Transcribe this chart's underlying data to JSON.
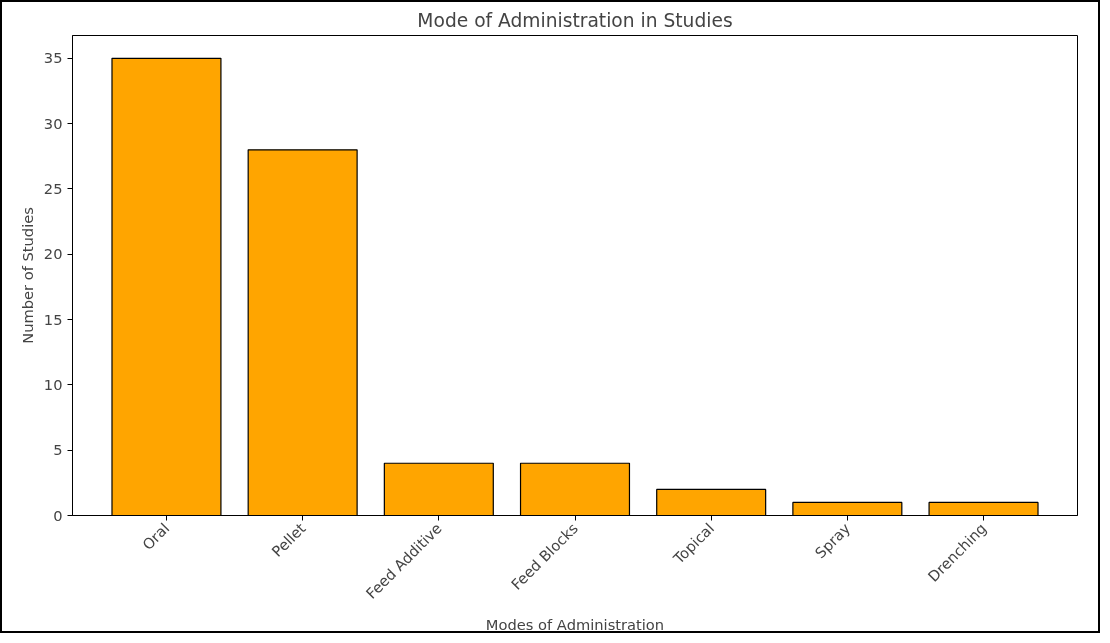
{
  "chart_data": {
    "type": "bar",
    "title": "Mode of Administration in Studies",
    "xlabel": "Modes of Administration",
    "ylabel": "Number of Studies",
    "categories": [
      "Oral",
      "Pellet",
      "Feed Additive",
      "Feed Blocks",
      "Topical",
      "Spray",
      "Drenching"
    ],
    "values": [
      35,
      28,
      4,
      4,
      2,
      1,
      1
    ],
    "color": "#ffa500",
    "ylim": [
      0,
      36.75
    ],
    "yticks": [
      0,
      5,
      10,
      15,
      20,
      25,
      30,
      35
    ],
    "grid": false
  }
}
